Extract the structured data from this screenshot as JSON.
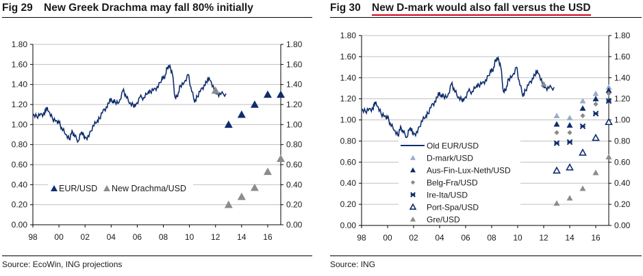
{
  "left": {
    "fig_number": "Fig 29",
    "title": "New Greek Drachma may fall 80% initially",
    "source": "Source: EcoWin, ING projections"
  },
  "right": {
    "fig_number": "Fig 30",
    "title": "New D-mark would also fall versus the USD",
    "source": "Source: ING"
  },
  "colors": {
    "navy": "#0e2d6b",
    "gray": "#8c8c8c",
    "light_blue": "#9aaccb",
    "diamond_gray": "#8a8a8a",
    "title_underline": "#d0021b",
    "gridline": "#bfbfbf"
  },
  "chart_data": [
    {
      "type": "line",
      "title": "New Greek Drachma may fall 80% initially",
      "xlabel": "",
      "ylabel": "",
      "x_range": [
        1998,
        2017
      ],
      "ylim": [
        0,
        1.8
      ],
      "y_ticks": [
        "0.00",
        "0.20",
        "0.40",
        "0.60",
        "0.80",
        "1.00",
        "1.20",
        "1.40",
        "1.60",
        "1.80"
      ],
      "x_ticks": [
        "98",
        "00",
        "02",
        "04",
        "06",
        "08",
        "10",
        "12",
        "14",
        "16"
      ],
      "grid": true,
      "legend_position": "lower-left",
      "eur_usd_history": {
        "name": "EUR/USD",
        "x": [
          1998.0,
          1998.3,
          1998.6,
          1998.9,
          1999.0,
          1999.2,
          1999.5,
          1999.8,
          2000.0,
          2000.2,
          2000.5,
          2000.8,
          2001.0,
          2001.2,
          2001.5,
          2001.7,
          2001.9,
          2002.0,
          2002.3,
          2002.6,
          2002.9,
          2003.1,
          2003.4,
          2003.7,
          2003.9,
          2004.1,
          2004.3,
          2004.6,
          2004.9,
          2005.1,
          2005.4,
          2005.7,
          2005.9,
          2006.2,
          2006.5,
          2006.8,
          2007.0,
          2007.3,
          2007.6,
          2007.9,
          2008.1,
          2008.3,
          2008.5,
          2008.7,
          2008.9,
          2009.1,
          2009.3,
          2009.6,
          2009.9,
          2010.1,
          2010.4,
          2010.6,
          2010.9,
          2011.2,
          2011.4,
          2011.6,
          2011.9,
          2012.1,
          2012.4,
          2012.8
        ],
        "y": [
          1.09,
          1.08,
          1.11,
          1.1,
          1.17,
          1.13,
          1.06,
          1.04,
          1.02,
          0.97,
          0.9,
          0.85,
          0.94,
          0.88,
          0.84,
          0.92,
          0.89,
          0.87,
          0.88,
          0.99,
          1.02,
          1.06,
          1.15,
          1.17,
          1.26,
          1.22,
          1.23,
          1.22,
          1.34,
          1.3,
          1.21,
          1.19,
          1.2,
          1.27,
          1.27,
          1.31,
          1.33,
          1.36,
          1.37,
          1.47,
          1.46,
          1.57,
          1.59,
          1.5,
          1.27,
          1.28,
          1.39,
          1.42,
          1.5,
          1.38,
          1.22,
          1.28,
          1.36,
          1.39,
          1.46,
          1.44,
          1.34,
          1.31,
          1.3,
          1.31
        ]
      },
      "series": [
        {
          "name": "EUR/USD",
          "marker": "triangle",
          "color": "#0e2d6b",
          "x": [
            2013,
            2014,
            2015,
            2016,
            2017
          ],
          "values": [
            1.0,
            1.1,
            1.2,
            1.3,
            1.3
          ]
        },
        {
          "name": "New Drachma/USD",
          "marker": "triangle",
          "color": "#8c8c8c",
          "x": [
            2012,
            2013,
            2014,
            2015,
            2016,
            2017
          ],
          "values": [
            1.34,
            0.2,
            0.28,
            0.37,
            0.53,
            0.66
          ]
        }
      ]
    },
    {
      "type": "line",
      "title": "New D-mark would also fall versus the USD",
      "xlabel": "",
      "ylabel": "",
      "x_range": [
        1998,
        2017
      ],
      "ylim": [
        0,
        1.8
      ],
      "y_ticks": [
        "0.00",
        "0.20",
        "0.40",
        "0.60",
        "0.80",
        "1.00",
        "1.20",
        "1.40",
        "1.60",
        "1.80"
      ],
      "x_ticks": [
        "98",
        "00",
        "02",
        "04",
        "06",
        "08",
        "10",
        "12",
        "14",
        "16"
      ],
      "grid": true,
      "legend_position": "lower-left",
      "series": [
        {
          "name": "Old EUR/USD",
          "marker": "line",
          "color": "#0e2d6b"
        },
        {
          "name": "D-mark/USD",
          "marker": "triangle",
          "color": "#9aaccb",
          "x": [
            2013,
            2014,
            2015,
            2016,
            2017
          ],
          "values": [
            1.04,
            1.02,
            1.18,
            1.25,
            1.31
          ]
        },
        {
          "name": "Aus-Fin-Lux-Neth/USD",
          "marker": "triangle",
          "color": "#0e2d6b",
          "x": [
            2013,
            2014,
            2015,
            2016,
            2017
          ],
          "values": [
            0.96,
            0.95,
            1.11,
            1.2,
            1.28
          ]
        },
        {
          "name": "Belg-Fra/USD",
          "marker": "diamond",
          "color": "#8a8a8a",
          "x": [
            2013,
            2014,
            2015,
            2016,
            2017
          ],
          "values": [
            0.88,
            0.88,
            1.04,
            1.15,
            1.25
          ]
        },
        {
          "name": "Ire-Ita/USD",
          "marker": "star",
          "color": "#0e2d6b",
          "x": [
            2013,
            2014,
            2015,
            2016,
            2017
          ],
          "values": [
            0.78,
            0.79,
            0.94,
            1.06,
            1.18
          ]
        },
        {
          "name": "Port-Spa/USD",
          "marker": "triangle-open",
          "color": "#0e2d6b",
          "x": [
            2013,
            2014,
            2015,
            2016,
            2017
          ],
          "values": [
            0.52,
            0.55,
            0.69,
            0.83,
            0.98
          ]
        },
        {
          "name": "Gre/USD",
          "marker": "triangle",
          "color": "#8c8c8c",
          "x": [
            2012,
            2013,
            2014,
            2015,
            2016,
            2017
          ],
          "values": [
            1.34,
            0.21,
            0.26,
            0.35,
            0.5,
            0.65
          ]
        }
      ]
    }
  ]
}
